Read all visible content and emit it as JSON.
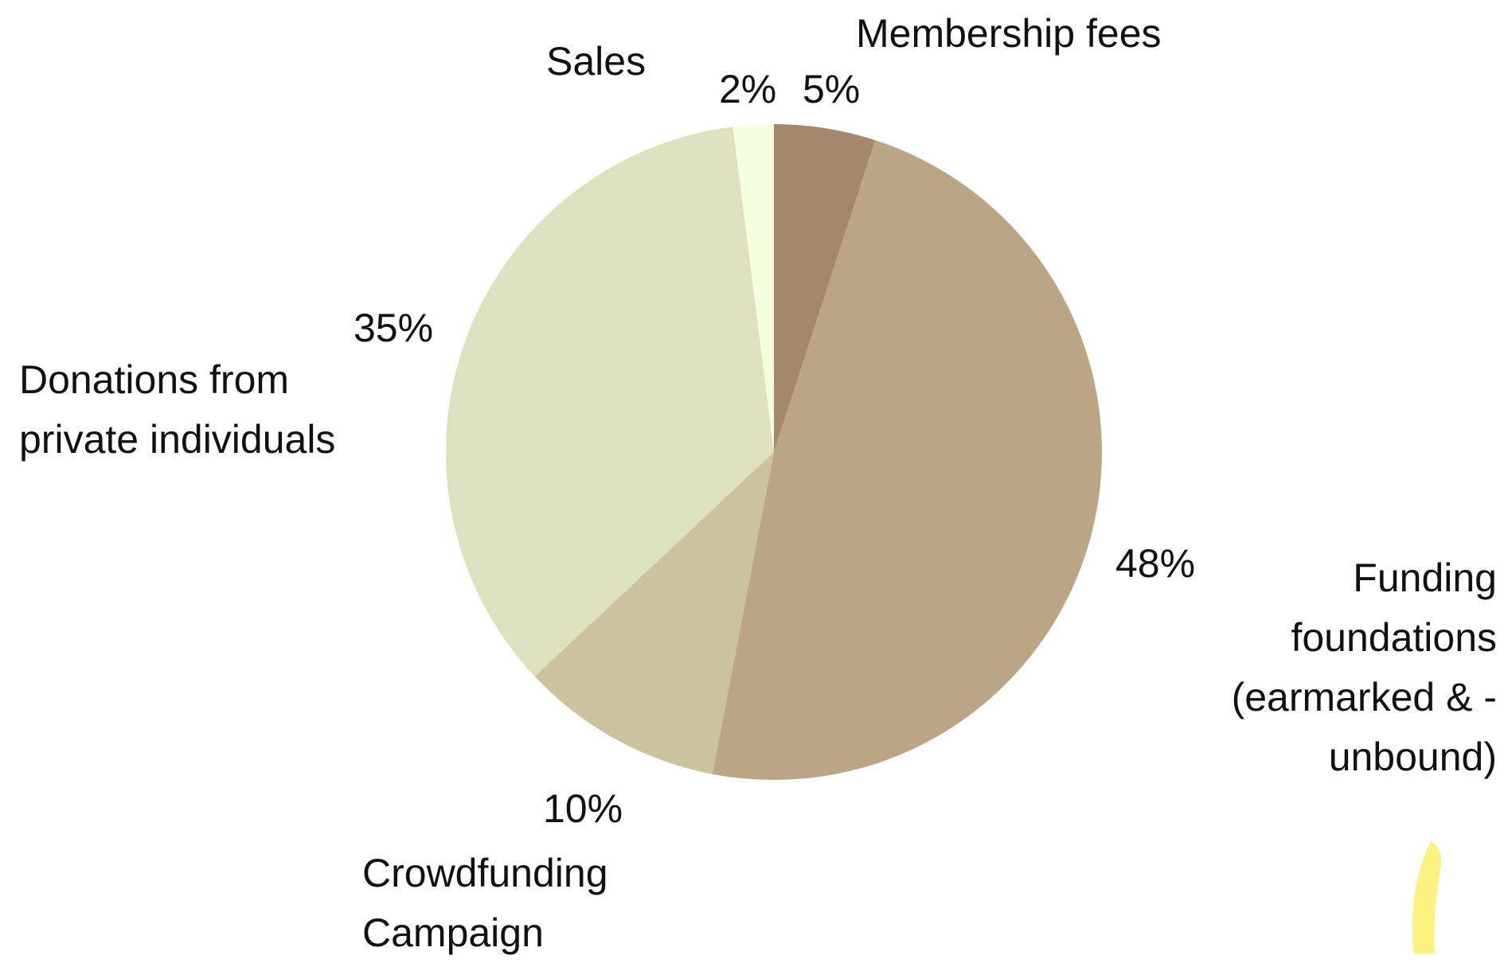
{
  "chart_data": {
    "type": "pie",
    "categories": [
      "Membership fees",
      "Funding foundations (earmarked & -unbound)",
      "Crowdfunding Campaign",
      "Donations from private individuals",
      "Sales"
    ],
    "values": [
      5,
      48,
      10,
      35,
      2
    ],
    "value_labels": [
      "5%",
      "48%",
      "10%",
      "35%",
      "2%"
    ],
    "colors": [
      "#a5876e",
      "#bba586",
      "#cbc2a0",
      "#dfe0bd",
      "#f3ffdf"
    ]
  }
}
